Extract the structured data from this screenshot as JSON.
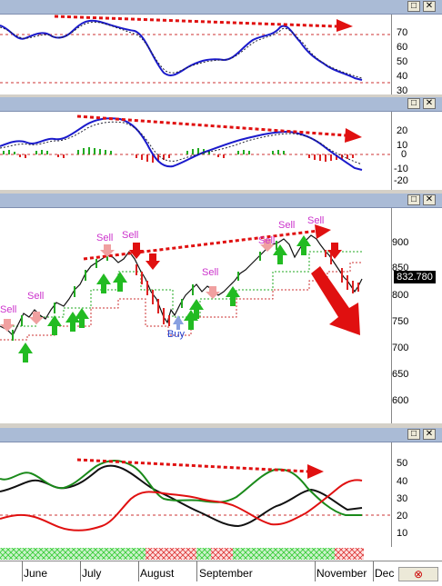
{
  "window_buttons": {
    "maximize": "□",
    "close": "✕"
  },
  "pane1": {
    "y_ticks": [
      "70",
      "60",
      "50",
      "40",
      "30"
    ]
  },
  "pane2": {
    "y_ticks": [
      "20",
      "10",
      "0",
      "-10",
      "-20"
    ]
  },
  "pane3": {
    "y_ticks": [
      "900",
      "850",
      "800",
      "750",
      "700",
      "650",
      "600"
    ],
    "last_price": "832.780",
    "signals": {
      "sell": "Sell",
      "buy": "Buy"
    }
  },
  "pane4": {
    "y_ticks": [
      "50",
      "40",
      "30",
      "20",
      "10"
    ]
  },
  "x_axis": {
    "months": [
      "June",
      "July",
      "August",
      "September",
      "November",
      "Dec"
    ]
  },
  "status_icon": "stop-icon",
  "colors": {
    "blue_line": "#1a1acc",
    "red_trend": "#e01010",
    "green_up": "#22bb22",
    "sell_label": "#cc33cc",
    "buy_label": "#1f3fd0",
    "titlebar": "#aabbd6"
  }
}
